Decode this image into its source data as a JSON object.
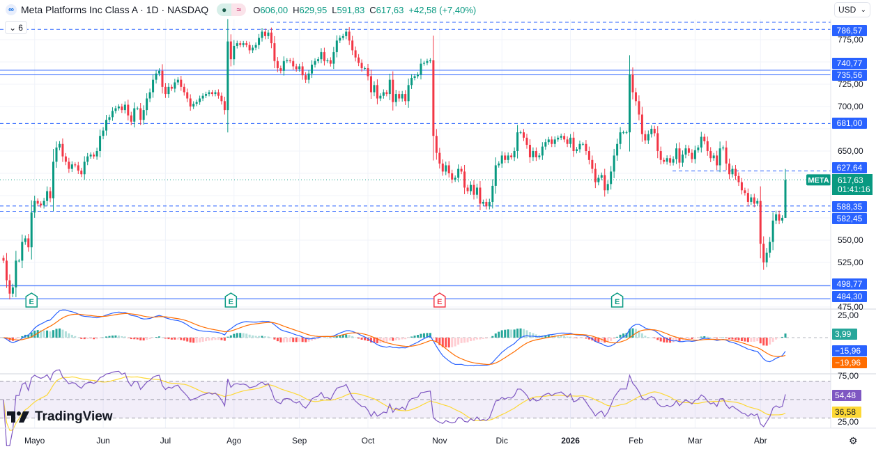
{
  "header": {
    "logo_icon": "meta-infinity-icon",
    "title": "Meta Platforms Inc Class A · 1D · NASDAQ",
    "status_icon": "market-open-dot-icon",
    "data_icon": "delayed-data-icon",
    "ohlc": {
      "o_label": "O",
      "o": "606,00",
      "h_label": "H",
      "h": "629,95",
      "l_label": "L",
      "l": "591,83",
      "c_label": "C",
      "c": "617,63",
      "change": "+42,58 (+7,40%)"
    }
  },
  "legend_toggle": {
    "count": "6"
  },
  "currency": {
    "label": "USD"
  },
  "price_axis": {
    "ticks": [
      {
        "v": 775,
        "t": "775,00"
      },
      {
        "v": 725,
        "t": "725,00"
      },
      {
        "v": 700,
        "t": "700,00"
      },
      {
        "v": 650,
        "t": "650,00"
      },
      {
        "v": 550,
        "t": "550,00"
      },
      {
        "v": 525,
        "t": "525,00"
      },
      {
        "v": 475,
        "t": "475,00"
      }
    ]
  },
  "levels": [
    {
      "v": 794.5,
      "style": "dashed",
      "label": ""
    },
    {
      "v": 786.57,
      "style": "dashed",
      "label": "786,57"
    },
    {
      "v": 740.77,
      "style": "solid",
      "label": "740,77"
    },
    {
      "v": 735.56,
      "style": "solid",
      "label": "735,56"
    },
    {
      "v": 681.0,
      "style": "dashed",
      "label": "681,00"
    },
    {
      "v": 627.64,
      "style": "dashed",
      "label": "627,64"
    },
    {
      "v": 588.35,
      "style": "dashed",
      "label": "588,35"
    },
    {
      "v": 582.45,
      "style": "dashed",
      "label": "582,45"
    },
    {
      "v": 498.77,
      "style": "solid",
      "label": "498,77"
    },
    {
      "v": 484.3,
      "style": "solid",
      "label": "484,30"
    }
  ],
  "last_price": {
    "symbol": "META",
    "price": "617,63",
    "countdown": "01:41:16"
  },
  "earnings": [
    {
      "label": "E",
      "bar": 9,
      "color": "#089981"
    },
    {
      "label": "E",
      "bar": 73,
      "color": "#089981"
    },
    {
      "label": "E",
      "bar": 140,
      "color": "#f23645"
    },
    {
      "label": "E",
      "bar": 197,
      "color": "#089981"
    }
  ],
  "macd": {
    "axis": "25,00",
    "hist": "3,99",
    "macd": "−15,96",
    "signal": "−19,96",
    "colors": {
      "macd": "#2962ff",
      "signal": "#ff6d00",
      "hist_up": "#26a69a",
      "hist_up_fade": "#b2dfdb",
      "hist_dn": "#ff5252",
      "hist_dn_fade": "#ffcdd2"
    }
  },
  "rsi": {
    "axis_top": "75,00",
    "axis_bottom": "25,00",
    "rsi": "54,48",
    "ma": "36,58",
    "colors": {
      "rsi": "#7e57c2",
      "ma": "#fdd835"
    }
  },
  "time_axis": [
    {
      "t": "Mayo",
      "bar": 10
    },
    {
      "t": "Jun",
      "bar": 32
    },
    {
      "t": "Jul",
      "bar": 52
    },
    {
      "t": "Ago",
      "bar": 74
    },
    {
      "t": "Sep",
      "bar": 95
    },
    {
      "t": "Oct",
      "bar": 117
    },
    {
      "t": "Nov",
      "bar": 140
    },
    {
      "t": "Dic",
      "bar": 160
    },
    {
      "t": "2026",
      "bar": 182
    },
    {
      "t": "Feb",
      "bar": 203
    },
    {
      "t": "Mar",
      "bar": 222
    },
    {
      "t": "Abr",
      "bar": 243
    }
  ],
  "branding": {
    "name": "TradingView"
  },
  "settings_icon": "gear-icon",
  "colors": {
    "up": "#089981",
    "down": "#f23645",
    "level": "#2962ff"
  },
  "chart_data": {
    "type": "candlestick",
    "symbol": "META",
    "interval": "1D",
    "ylim": [
      470,
      800
    ],
    "closes": [
      527,
      505,
      490,
      497,
      527,
      527,
      548,
      552,
      542,
      581,
      594,
      591,
      589,
      594,
      605,
      597,
      638,
      654,
      658,
      644,
      638,
      630,
      635,
      634,
      628,
      624,
      638,
      644,
      646,
      644,
      650,
      667,
      673,
      685,
      688,
      695,
      698,
      700,
      696,
      702,
      690,
      683,
      698,
      698,
      685,
      696,
      709,
      716,
      730,
      737,
      740,
      722,
      714,
      722,
      720,
      727,
      730,
      722,
      716,
      709,
      700,
      703,
      705,
      709,
      712,
      714,
      716,
      714,
      716,
      712,
      706,
      696,
      773,
      753,
      768,
      771,
      769,
      771,
      769,
      763,
      766,
      769,
      777,
      784,
      779,
      783,
      771,
      751,
      743,
      740,
      751,
      752,
      751,
      745,
      742,
      745,
      735,
      730,
      737,
      747,
      751,
      753,
      761,
      751,
      752,
      748,
      761,
      774,
      777,
      779,
      784,
      774,
      763,
      755,
      749,
      743,
      743,
      734,
      716,
      724,
      709,
      712,
      716,
      714,
      730,
      705,
      714,
      709,
      714,
      706,
      724,
      732,
      734,
      736,
      748,
      749,
      751,
      752,
      667,
      648,
      636,
      627,
      634,
      625,
      618,
      620,
      630,
      627,
      609,
      605,
      612,
      601,
      609,
      591,
      593,
      588,
      593,
      611,
      634,
      636,
      645,
      640,
      645,
      643,
      650,
      671,
      671,
      665,
      657,
      643,
      650,
      643,
      645,
      655,
      660,
      663,
      658,
      663,
      665,
      667,
      663,
      658,
      665,
      650,
      652,
      658,
      658,
      650,
      640,
      630,
      615,
      620,
      623,
      606,
      613,
      627,
      645,
      658,
      671,
      671,
      671,
      736,
      716,
      706,
      691,
      669,
      662,
      669,
      675,
      670,
      650,
      640,
      638,
      642,
      637,
      641,
      653,
      637,
      646,
      653,
      648,
      641,
      651,
      654,
      666,
      661,
      650,
      642,
      645,
      634,
      653,
      654,
      636,
      624,
      630,
      622,
      615,
      606,
      603,
      593,
      598,
      591,
      594,
      546,
      525,
      536,
      548,
      572,
      579,
      572,
      575.05,
      617.63
    ],
    "last": {
      "open": 606.0,
      "high": 629.95,
      "low": 591.83,
      "close": 617.63,
      "change": 42.58,
      "change_pct": 7.4
    },
    "indicators": [
      "MACD",
      "RSI"
    ],
    "grid": true
  }
}
